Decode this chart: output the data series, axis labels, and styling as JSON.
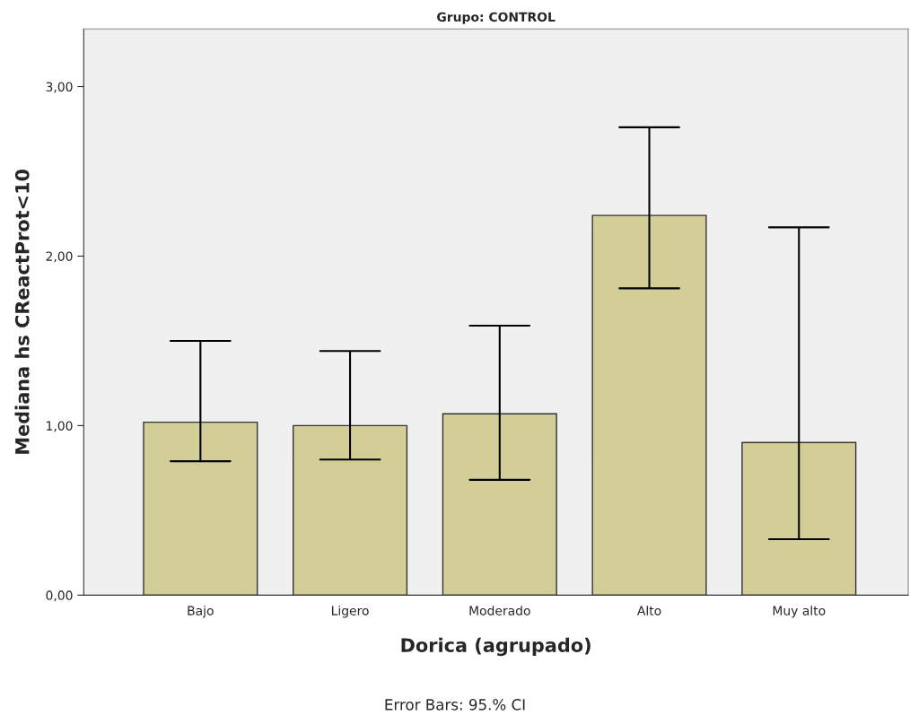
{
  "chart_data": {
    "type": "bar",
    "title": "Grupo: CONTROL",
    "xlabel": "Dorica (agrupado)",
    "ylabel": "Mediana hs CReactProt<10",
    "categories": [
      "Bajo",
      "Ligero",
      "Moderado",
      "Alto",
      "Muy alto"
    ],
    "values": [
      1.02,
      1.0,
      1.07,
      2.24,
      0.9
    ],
    "errors": [
      [
        0.79,
        1.5
      ],
      [
        0.8,
        1.44
      ],
      [
        0.68,
        1.59
      ],
      [
        1.81,
        2.76
      ],
      [
        0.33,
        2.17
      ]
    ],
    "color": "#d3ce97",
    "ylim": [
      0,
      3.34
    ],
    "yticks": [
      {
        "value": 0,
        "label": "0,00"
      },
      {
        "value": 1,
        "label": "1,00"
      },
      {
        "value": 2,
        "label": "2,00"
      },
      {
        "value": 3,
        "label": "3,00"
      }
    ],
    "grid": false,
    "annotations": [
      "Error Bars: 95.% CI"
    ]
  }
}
